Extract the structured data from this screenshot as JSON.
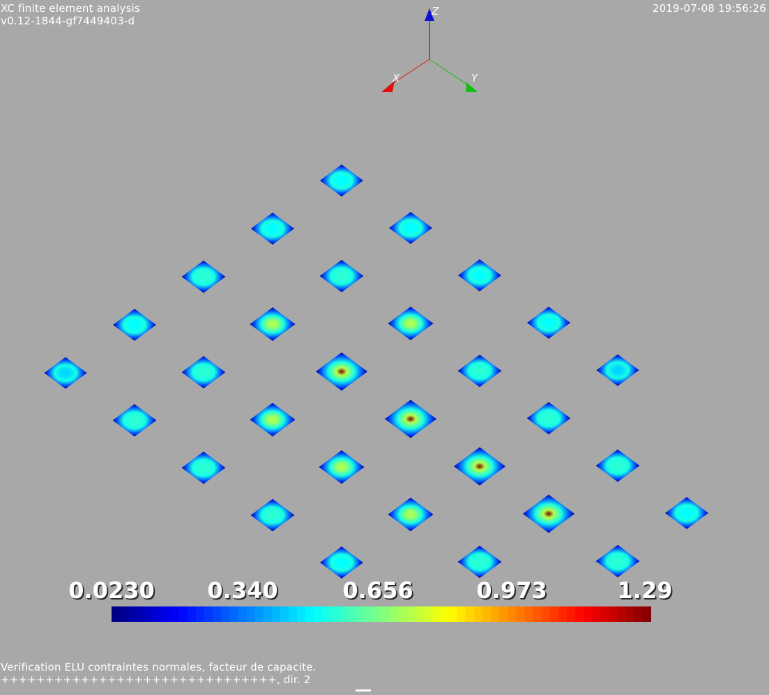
{
  "header": {
    "app_title": "XC finite element analysis",
    "version": "v0.12-1844-gf7449403-d",
    "timestamp": "2019-07-08 19:56:26"
  },
  "axes": {
    "x_label": "X",
    "y_label": "Y",
    "z_label": "Z",
    "x_color": "#e01010",
    "y_color": "#10c010",
    "z_color": "#1010d0"
  },
  "colorbar": {
    "min": 0.023,
    "max": 1.29,
    "ticks": [
      "0.0230",
      "0.340",
      "0.656",
      "0.973",
      "1.29"
    ],
    "colormap": "jet"
  },
  "caption": {
    "line1": "Verification ELU contraintes normales, facteur de capacite.",
    "line2": "+++++++++++++++++++++++++++++++, dir. 2"
  },
  "elements": [
    {
      "i": 0,
      "j": 0,
      "peak": 0.45
    },
    {
      "i": 0,
      "j": 1,
      "peak": 0.55
    },
    {
      "i": 0,
      "j": 2,
      "peak": 0.55
    },
    {
      "i": 0,
      "j": 3,
      "peak": 0.55
    },
    {
      "i": 0,
      "j": 4,
      "peak": 0.5
    },
    {
      "i": 1,
      "j": 0,
      "peak": 0.5
    },
    {
      "i": 1,
      "j": 1,
      "peak": 0.55
    },
    {
      "i": 1,
      "j": 2,
      "peak": 0.7
    },
    {
      "i": 1,
      "j": 3,
      "peak": 0.7
    },
    {
      "i": 1,
      "j": 4,
      "peak": 0.7
    },
    {
      "i": 1,
      "j": 5,
      "peak": 0.55
    },
    {
      "i": 2,
      "j": 0,
      "peak": 0.55
    },
    {
      "i": 2,
      "j": 1,
      "peak": 0.7
    },
    {
      "i": 2,
      "j": 2,
      "peak": 1.29
    },
    {
      "i": 2,
      "j": 3,
      "peak": 1.29
    },
    {
      "i": 2,
      "j": 4,
      "peak": 1.29
    },
    {
      "i": 2,
      "j": 5,
      "peak": 1.29
    },
    {
      "i": 2,
      "j": 6,
      "peak": 0.55
    },
    {
      "i": 3,
      "j": 0,
      "peak": 0.5
    },
    {
      "i": 3,
      "j": 1,
      "peak": 0.55
    },
    {
      "i": 3,
      "j": 2,
      "peak": 0.7
    },
    {
      "i": 3,
      "j": 3,
      "peak": 0.55
    },
    {
      "i": 3,
      "j": 4,
      "peak": 0.55
    },
    {
      "i": 3,
      "j": 5,
      "peak": 0.55
    },
    {
      "i": 3,
      "j": 6,
      "peak": 0.5
    },
    {
      "i": 4,
      "j": 0,
      "peak": 0.5
    },
    {
      "i": 4,
      "j": 1,
      "peak": 0.5
    },
    {
      "i": 4,
      "j": 2,
      "peak": 0.5
    },
    {
      "i": 4,
      "j": 3,
      "peak": 0.5
    },
    {
      "i": 4,
      "j": 4,
      "peak": 0.45
    }
  ]
}
